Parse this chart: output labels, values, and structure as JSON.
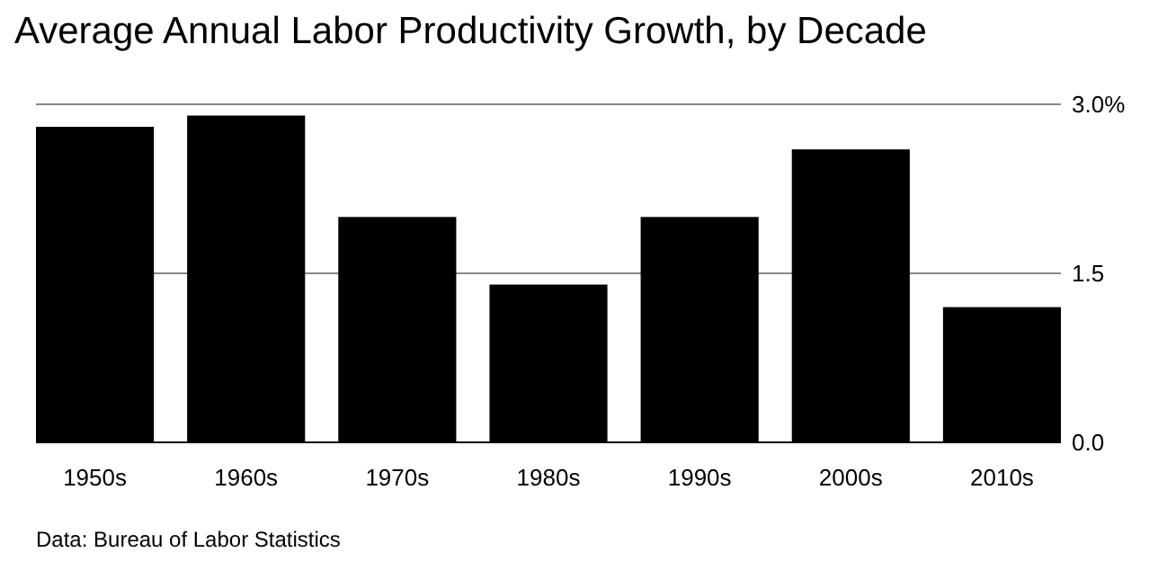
{
  "chart_data": {
    "type": "bar",
    "title": "Average Annual Labor Productivity Growth, by Decade",
    "categories": [
      "1950s",
      "1960s",
      "1970s",
      "1980s",
      "1990s",
      "2000s",
      "2010s"
    ],
    "values": [
      2.8,
      2.9,
      2.0,
      1.4,
      2.0,
      2.6,
      1.2
    ],
    "color": "#000000",
    "ylim": [
      0,
      3
    ],
    "yticks": [
      {
        "value": 0,
        "label": "0.0"
      },
      {
        "value": 1.5,
        "label": "1.5"
      },
      {
        "value": 3,
        "label": "3.0%"
      }
    ],
    "grid": "y",
    "annotations": [
      "Data: Bureau of Labor Statistics"
    ]
  }
}
